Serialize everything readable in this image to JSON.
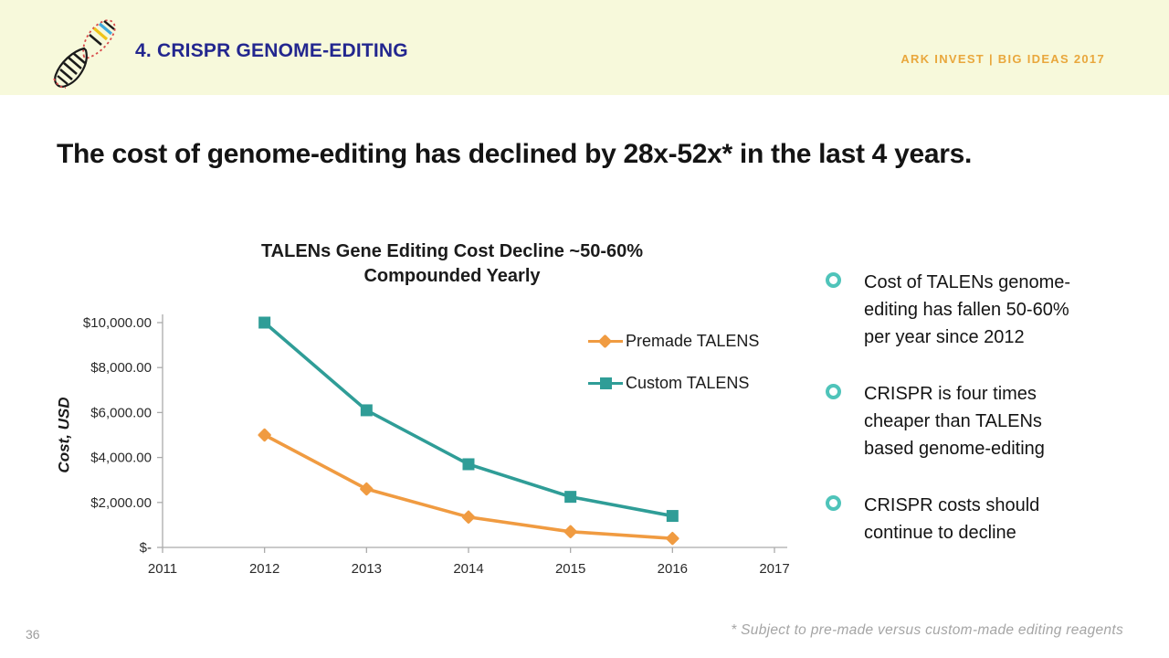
{
  "header": {
    "title": "4. CRISPR GENOME-EDITING",
    "brand": "ARK INVEST | BIG IDEAS 2017",
    "logo_icon": "dna-helix-icon"
  },
  "slide": {
    "heading": "The cost of genome-editing has declined by 28x-52x* in the last 4 years.",
    "page_number": "36",
    "footnote": "* Subject to pre-made versus custom-made editing reagents"
  },
  "bullets": [
    {
      "lines": [
        "Cost of TALENs genome-",
        "editing has fallen 50-60%",
        "per year since 2012"
      ]
    },
    {
      "lines": [
        "CRISPR is four times",
        "cheaper than TALENs",
        "based genome-editing"
      ]
    },
    {
      "lines": [
        "CRISPR costs should",
        "continue to decline"
      ]
    }
  ],
  "chart_data": {
    "type": "line",
    "title": "TALENs Gene Editing Cost Decline ~50-60% Compounded Yearly",
    "title_lines": [
      "TALENs Gene Editing Cost Decline ~50-60%",
      "Compounded Yearly"
    ],
    "xlabel": "",
    "ylabel": "Cost, USD",
    "categories": [
      "2011",
      "2012",
      "2013",
      "2014",
      "2015",
      "2016",
      "2017"
    ],
    "series": [
      {
        "name": "Premade TALENS",
        "color": "#F09B41",
        "marker": "diamond",
        "values": [
          null,
          5000,
          2600,
          1350,
          700,
          400,
          null
        ]
      },
      {
        "name": "Custom TALENS",
        "color": "#2F9D97",
        "marker": "square",
        "values": [
          null,
          10000,
          6100,
          3700,
          2250,
          1400,
          null
        ]
      }
    ],
    "ylim": [
      0,
      10000
    ],
    "y_ticks": [
      0,
      2000,
      4000,
      6000,
      8000,
      10000
    ],
    "y_tick_labels": [
      "$-",
      "$2,000.00",
      "$4,000.00",
      "$6,000.00",
      "$8,000.00",
      "$10,000.00"
    ],
    "grid": false,
    "legend_position": "top-right"
  },
  "colors": {
    "header_bg": "#F7F9DB",
    "navy": "#23278F",
    "gold": "#E9A73C",
    "teal": "#2F9D97",
    "orange": "#F09B41",
    "bullet_ring": "#4FC4BA",
    "axis_gray": "#ABABAB",
    "footnote_gray": "#A5A5A5",
    "text": "#141414"
  }
}
